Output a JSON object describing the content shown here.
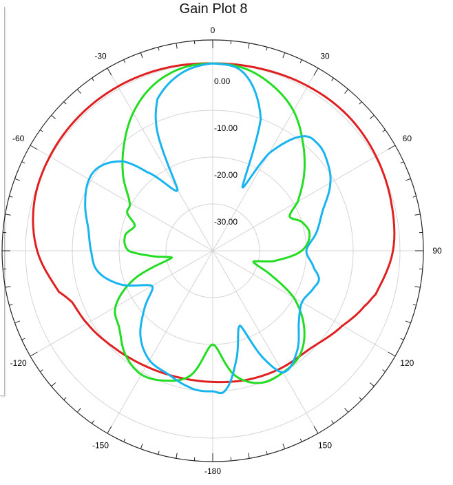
{
  "title": "Gain Plot 8",
  "chart_data": {
    "type": "polar_line",
    "title": "Gain Plot 8",
    "angle_unit": "deg",
    "angle_labels": [
      "0",
      "30",
      "60",
      "90",
      "120",
      "150",
      "-180",
      "-150",
      "-120",
      "-90",
      "-60",
      "-30"
    ],
    "radial_ticks": [
      0,
      -10,
      -20,
      -30
    ],
    "radial_tick_labels": [
      "0.00",
      "-10.00",
      "-20.00",
      "-30.00"
    ],
    "r_range": [
      -40,
      5
    ],
    "grid": true,
    "series": [
      {
        "color": "#e02020",
        "theta": [
          0,
          15,
          30,
          45,
          60,
          75,
          90,
          105,
          110,
          120,
          135,
          150,
          165,
          180,
          195,
          210,
          225,
          240,
          250,
          255,
          270,
          285,
          300,
          315,
          330,
          345,
          360
        ],
        "r": [
          0.0,
          0.2,
          0.6,
          0.8,
          0.3,
          -0.5,
          -1.5,
          -4.0,
          -5.5,
          -8.0,
          -10.5,
          -11.0,
          -11.5,
          -12.0,
          -12.0,
          -11.5,
          -10.5,
          -9.0,
          -8.0,
          -6.0,
          -2.5,
          -0.5,
          0.2,
          0.5,
          0.5,
          0.3,
          0.0
        ]
      },
      {
        "color": "#22dd22",
        "theta": [
          0,
          10,
          20,
          30,
          40,
          50,
          60,
          66,
          72,
          80,
          90,
          100,
          105,
          112,
          120,
          130,
          140,
          150,
          160,
          170,
          180,
          190,
          200,
          210,
          220,
          230,
          240,
          250,
          260,
          265,
          270,
          280,
          288,
          294,
          300,
          310,
          320,
          330,
          340,
          350,
          360
        ],
        "r": [
          0.0,
          -0.5,
          -2.5,
          -5.5,
          -10.0,
          -14.5,
          -19.0,
          -22.0,
          -20.0,
          -19.0,
          -21.0,
          -27.0,
          -31.0,
          -27.0,
          -20.0,
          -14.5,
          -11.0,
          -10.0,
          -10.0,
          -13.0,
          -20.0,
          -13.0,
          -10.5,
          -9.5,
          -11.0,
          -14.0,
          -16.0,
          -22.0,
          -31.0,
          -27.0,
          -22.0,
          -21.0,
          -22.5,
          -20.0,
          -19.5,
          -15.0,
          -10.5,
          -6.0,
          -2.5,
          -0.5,
          0.0
        ]
      },
      {
        "color": "#18b4f0",
        "theta": [
          0,
          10,
          20,
          25,
          30,
          38,
          45,
          52,
          60,
          70,
          80,
          90,
          100,
          105,
          110,
          120,
          130,
          140,
          150,
          155,
          160,
          168,
          175,
          180,
          185,
          190,
          200,
          210,
          220,
          230,
          240,
          250,
          260,
          270,
          280,
          290,
          300,
          307,
          315,
          320,
          330,
          335,
          340,
          350,
          360
        ],
        "r": [
          0.0,
          -1.5,
          -10.0,
          -25.0,
          -16.0,
          -9.0,
          -8.0,
          -9.0,
          -11.0,
          -15.0,
          -17.5,
          -20.0,
          -18.0,
          -16.5,
          -17.0,
          -18.0,
          -16.0,
          -12.0,
          -10.0,
          -15.0,
          -23.0,
          -16.0,
          -10.0,
          -10.0,
          -10.0,
          -10.5,
          -12.0,
          -13.0,
          -16.0,
          -21.0,
          -25.0,
          -19.0,
          -15.0,
          -14.0,
          -13.0,
          -11.0,
          -9.5,
          -10.0,
          -13.0,
          -18.0,
          -25.0,
          -12.0,
          -5.5,
          -1.5,
          0.0
        ]
      }
    ]
  }
}
